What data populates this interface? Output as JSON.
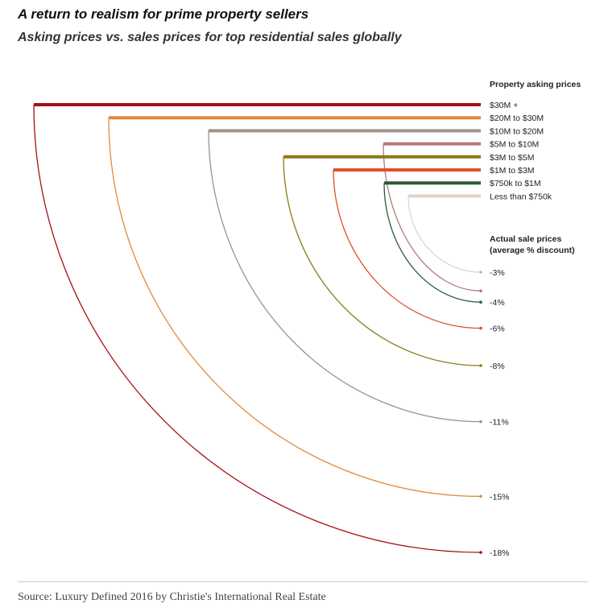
{
  "title": "A return to realism for prime property sellers",
  "subtitle": "Asking prices vs. sales prices for top residential sales globally",
  "source": "Source: Luxury Defined 2016 by Christie's International Real Estate",
  "chart_data": {
    "type": "arc",
    "legend_asking_title": "Property asking prices",
    "legend_sale_title_line1": "Actual sale prices",
    "legend_sale_title_line2": "(average % discount)",
    "series": [
      {
        "name": "$30M +",
        "discount_label": "-18%",
        "discount": -18,
        "color": "#a50f15"
      },
      {
        "name": "$20M to $30M",
        "discount_label": "-15%",
        "discount": -15,
        "color": "#e08a3c"
      },
      {
        "name": "$10M to $20M",
        "discount_label": "-11%",
        "discount": -11,
        "color": "#9e948a"
      },
      {
        "name": "$5M to $10M",
        "discount_label": "-4%",
        "discount": -4,
        "color": "#b07a7e"
      },
      {
        "name": "$3M to $5M",
        "discount_label": "-8%",
        "discount": -8,
        "color": "#8a7a1a"
      },
      {
        "name": "$1M to $3M",
        "discount_label": "-6%",
        "discount": -6,
        "color": "#e0502a"
      },
      {
        "name": "$750k to $1M",
        "discount_label": "-4%",
        "discount": -4,
        "color": "#2e5a3a"
      },
      {
        "name": "Less than $750k",
        "discount_label": "-3%",
        "discount": -3,
        "color": "#e0d4cb"
      }
    ]
  }
}
